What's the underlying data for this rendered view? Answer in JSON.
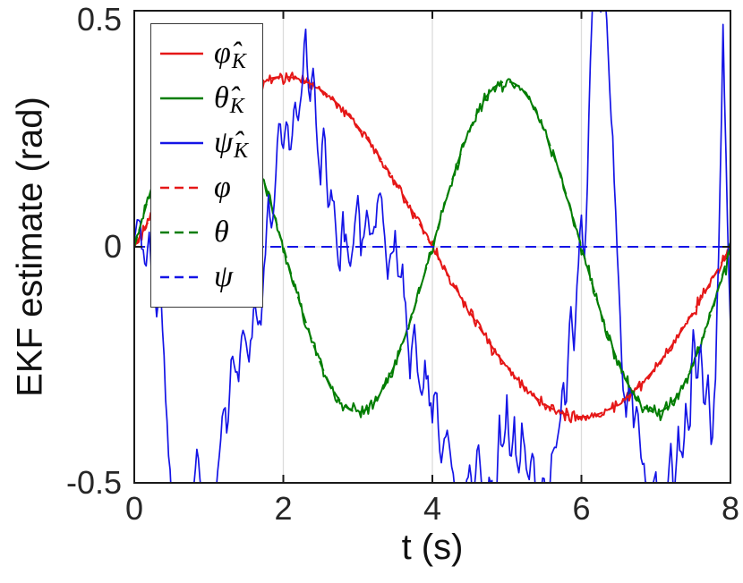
{
  "colors": {
    "red": "#e51717",
    "green": "#027d02",
    "blue": "#1414e6",
    "grid": "#dcdcdc",
    "axis": "#1a1a1a",
    "tick_text": "#262626",
    "background": "#ffffff"
  },
  "chart_data": {
    "type": "line",
    "title": "",
    "xlabel": "t (s)",
    "ylabel": "EKF estimate (rad)",
    "xlim": [
      0,
      8
    ],
    "ylim": [
      -0.5,
      0.5
    ],
    "xticks": [
      0,
      2,
      4,
      6,
      8
    ],
    "xtick_labels": [
      "0",
      "2",
      "4",
      "6",
      "8"
    ],
    "yticks": [
      -0.5,
      0,
      0.5
    ],
    "ytick_labels": [
      "-0.5",
      "0",
      "0.5"
    ],
    "grid": "vertical-at-xticks-plus-zero-line",
    "legend_position": "top-left",
    "series": [
      {
        "name": "phi_hat_K",
        "label": "φ̂_K",
        "color_key": "red",
        "style": "solid",
        "model": {
          "kind": "sine",
          "amplitude": 0.36,
          "period_s": 8,
          "phase_deg": 0
        },
        "noise_sigma": 0.006,
        "keypoints_t": [
          0,
          0.5,
          1,
          1.5,
          2,
          2.5,
          3,
          3.5,
          4,
          4.5,
          5,
          5.5,
          6,
          6.5,
          7,
          7.5,
          8
        ],
        "keypoints_y": [
          0,
          0.138,
          0.255,
          0.333,
          0.36,
          0.333,
          0.255,
          0.138,
          0,
          -0.138,
          -0.255,
          -0.333,
          -0.36,
          -0.333,
          -0.255,
          -0.138,
          0
        ]
      },
      {
        "name": "theta_hat_K",
        "label": "θ̂_K",
        "color_key": "green",
        "style": "solid",
        "model": {
          "kind": "sine",
          "amplitude": 0.35,
          "period_s": 4,
          "phase_deg": 0
        },
        "noise_sigma": 0.007,
        "keypoints_t": [
          0,
          0.5,
          1,
          1.5,
          2,
          2.5,
          3,
          3.5,
          4,
          4.5,
          5,
          5.5,
          6,
          6.5,
          7,
          7.5,
          8
        ],
        "keypoints_y": [
          0,
          0.247,
          0.35,
          0.247,
          0,
          -0.247,
          -0.35,
          -0.247,
          0,
          0.247,
          0.35,
          0.247,
          0,
          -0.247,
          -0.35,
          -0.247,
          0
        ]
      },
      {
        "name": "psi_hat_K",
        "label": "ψ̂_K",
        "color_key": "blue",
        "style": "solid",
        "noise_sigma": 0.012,
        "points_t": [
          0,
          0.05,
          0.1,
          0.15,
          0.2,
          0.25,
          0.3,
          0.35,
          0.4,
          0.45,
          0.5,
          0.6,
          0.7,
          0.75,
          0.85,
          0.9,
          1.0,
          1.1,
          1.2,
          1.25,
          1.3,
          1.4,
          1.45,
          1.55,
          1.6,
          1.7,
          1.75,
          1.8,
          1.85,
          1.9,
          1.95,
          2.0,
          2.05,
          2.1,
          2.15,
          2.2,
          2.25,
          2.3,
          2.35,
          2.4,
          2.45,
          2.5,
          2.55,
          2.6,
          2.65,
          2.7,
          2.75,
          2.8,
          2.9,
          3.0,
          3.05,
          3.1,
          3.2,
          3.3,
          3.35,
          3.4,
          3.5,
          3.55,
          3.6,
          3.7,
          3.75,
          3.85,
          3.9,
          4.0,
          4.05,
          4.1,
          4.2,
          4.3,
          4.4,
          4.5,
          4.55,
          4.6,
          4.7,
          4.8,
          4.85,
          4.9,
          4.95,
          5.0,
          5.05,
          5.1,
          5.15,
          5.2,
          5.3,
          5.35,
          5.4,
          5.5,
          5.55,
          5.6,
          5.7,
          5.75,
          5.8,
          5.85,
          5.9,
          5.95,
          6.0,
          6.05,
          6.1,
          6.15,
          6.2,
          6.25,
          6.3,
          6.35,
          6.4,
          6.45,
          6.5,
          6.55,
          6.6,
          6.65,
          6.7,
          6.75,
          6.8,
          6.9,
          7.0,
          7.05,
          7.15,
          7.2,
          7.25,
          7.3,
          7.35,
          7.4,
          7.45,
          7.5,
          7.55,
          7.6,
          7.65,
          7.7,
          7.75,
          7.8,
          7.85,
          7.9,
          7.95,
          8.0
        ],
        "points_y": [
          0.0,
          0.08,
          0.0,
          -0.04,
          0.02,
          -0.1,
          -0.13,
          -0.07,
          -0.25,
          -0.38,
          -0.52,
          -0.58,
          -0.5,
          -0.56,
          -0.44,
          -0.54,
          -0.6,
          -0.52,
          -0.33,
          -0.4,
          -0.23,
          -0.28,
          -0.18,
          -0.23,
          -0.13,
          -0.18,
          -0.03,
          0.1,
          0.02,
          0.16,
          0.28,
          0.19,
          0.25,
          0.22,
          0.3,
          0.28,
          0.33,
          0.46,
          0.31,
          0.39,
          0.22,
          0.12,
          0.3,
          0.07,
          0.13,
          0.04,
          -0.06,
          0.06,
          -0.04,
          0.1,
          -0.02,
          0.06,
          0.02,
          0.12,
          0.04,
          -0.06,
          0.04,
          -0.08,
          -0.04,
          -0.27,
          -0.17,
          -0.32,
          -0.25,
          -0.36,
          -0.28,
          -0.45,
          -0.38,
          -0.52,
          -0.58,
          -0.45,
          -0.55,
          -0.42,
          -0.56,
          -0.48,
          -0.58,
          -0.36,
          -0.45,
          -0.33,
          -0.46,
          -0.36,
          -0.5,
          -0.38,
          -0.5,
          -0.42,
          -0.55,
          -0.48,
          -0.58,
          -0.45,
          -0.38,
          -0.3,
          -0.33,
          -0.12,
          -0.22,
          -0.05,
          0.06,
          -0.04,
          0.28,
          0.55,
          0.62,
          0.5,
          0.58,
          0.44,
          0.28,
          0.1,
          -0.08,
          -0.28,
          -0.36,
          -0.27,
          -0.38,
          -0.33,
          -0.45,
          -0.54,
          -0.48,
          -0.58,
          -0.5,
          -0.44,
          -0.55,
          -0.38,
          -0.48,
          -0.33,
          -0.42,
          -0.16,
          -0.3,
          -0.21,
          -0.36,
          -0.26,
          -0.44,
          -0.28,
          0.05,
          0.46,
          0.12,
          -0.16
        ]
      },
      {
        "name": "phi_true",
        "label": "φ",
        "color_key": "red",
        "style": "dashed",
        "model": {
          "kind": "sine",
          "amplitude": 0.36,
          "period_s": 8,
          "phase_deg": 0
        },
        "noise_sigma": 0
      },
      {
        "name": "theta_true",
        "label": "θ",
        "color_key": "green",
        "style": "dashed",
        "model": {
          "kind": "sine",
          "amplitude": 0.35,
          "period_s": 4,
          "phase_deg": 0
        },
        "noise_sigma": 0
      },
      {
        "name": "psi_true",
        "label": "ψ",
        "color_key": "blue",
        "style": "dashed",
        "model": {
          "kind": "constant",
          "value": 0
        },
        "noise_sigma": 0
      }
    ],
    "legend": {
      "entries": [
        {
          "base": "φ̂",
          "sub": "K",
          "color_key": "red",
          "style": "solid"
        },
        {
          "base": "θ̂",
          "sub": "K",
          "color_key": "green",
          "style": "solid"
        },
        {
          "base": "ψ̂",
          "sub": "K",
          "color_key": "blue",
          "style": "solid"
        },
        {
          "base": "φ",
          "sub": "",
          "color_key": "red",
          "style": "dashed"
        },
        {
          "base": "θ",
          "sub": "",
          "color_key": "green",
          "style": "dashed"
        },
        {
          "base": "ψ",
          "sub": "",
          "color_key": "blue",
          "style": "dashed"
        }
      ]
    }
  }
}
